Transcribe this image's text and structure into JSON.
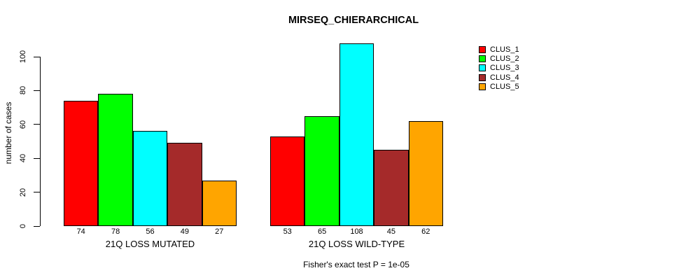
{
  "chart_data": {
    "type": "bar",
    "title": "MIRSEQ_CHIERARCHICAL",
    "ylabel": "number of cases",
    "xlabel": "",
    "footnote": "Fisher's exact test P = 1e-05",
    "categories": [
      "21Q LOSS MUTATED",
      "21Q LOSS WILD-TYPE"
    ],
    "series": [
      {
        "name": "CLUS_1",
        "color": "#ff0000",
        "values": [
          74,
          53
        ]
      },
      {
        "name": "CLUS_2",
        "color": "#00ff00",
        "values": [
          78,
          65
        ]
      },
      {
        "name": "CLUS_3",
        "color": "#00ffff",
        "values": [
          56,
          108
        ]
      },
      {
        "name": "CLUS_4",
        "color": "#a52a2a",
        "values": [
          49,
          45
        ]
      },
      {
        "name": "CLUS_5",
        "color": "#ffa500",
        "values": [
          27,
          62
        ]
      }
    ],
    "bar_value_labels": true,
    "yticks": [
      0,
      20,
      40,
      60,
      80,
      100
    ],
    "ylim": [
      0,
      100
    ],
    "grid": false,
    "legend_position": "right",
    "axis_color": "#000000",
    "bar_border_color": "#000000",
    "background_color": "#ffffff"
  }
}
